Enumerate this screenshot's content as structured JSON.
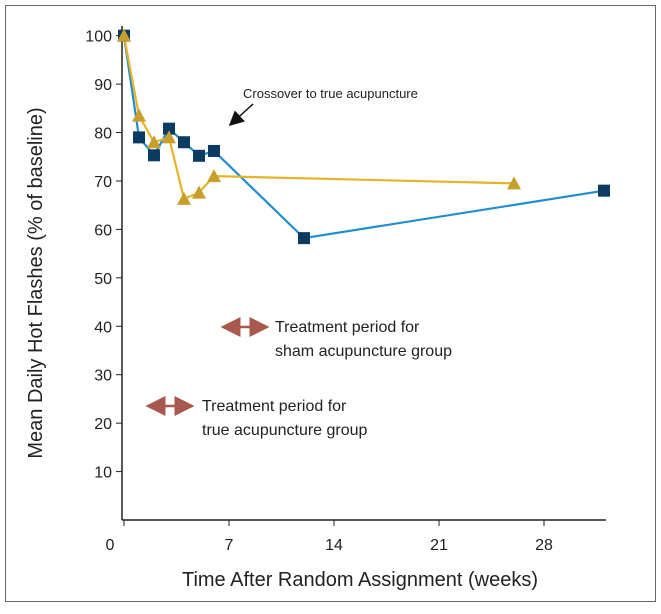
{
  "chart_data": {
    "type": "line",
    "x_label": "Time After Random Assignment (weeks)",
    "y_label": "Mean Daily Hot Flashes (% of baseline)",
    "xlim": [
      0,
      32
    ],
    "xticks": [
      0,
      7,
      14,
      21,
      28
    ],
    "ylim": [
      0,
      102
    ],
    "yticks": [
      10,
      20,
      30,
      40,
      50,
      60,
      70,
      80,
      90,
      100
    ],
    "series": [
      {
        "color": "#1f8fd0",
        "marker_color": "#0b3a63",
        "marker": "square",
        "x": [
          0,
          1,
          2,
          3,
          4,
          5,
          6,
          12,
          32
        ],
        "values": [
          100,
          79,
          75.3,
          80.8,
          78,
          75.2,
          76.2,
          58.2,
          68
        ]
      },
      {
        "color": "#e4b42a",
        "marker_color": "#c79f2a",
        "marker": "triangle",
        "x": [
          0,
          1,
          2,
          3,
          4,
          5,
          6,
          26
        ],
        "values": [
          100,
          83.5,
          78,
          79,
          66.3,
          67.6,
          71,
          69.5
        ]
      }
    ],
    "annotations": [
      {
        "text": "Crossover to true acupuncture"
      },
      {
        "lines": [
          "Treatment period for",
          "sham acupuncture group"
        ]
      },
      {
        "lines": [
          "Treatment period for",
          "true acupuncture group"
        ]
      }
    ]
  }
}
